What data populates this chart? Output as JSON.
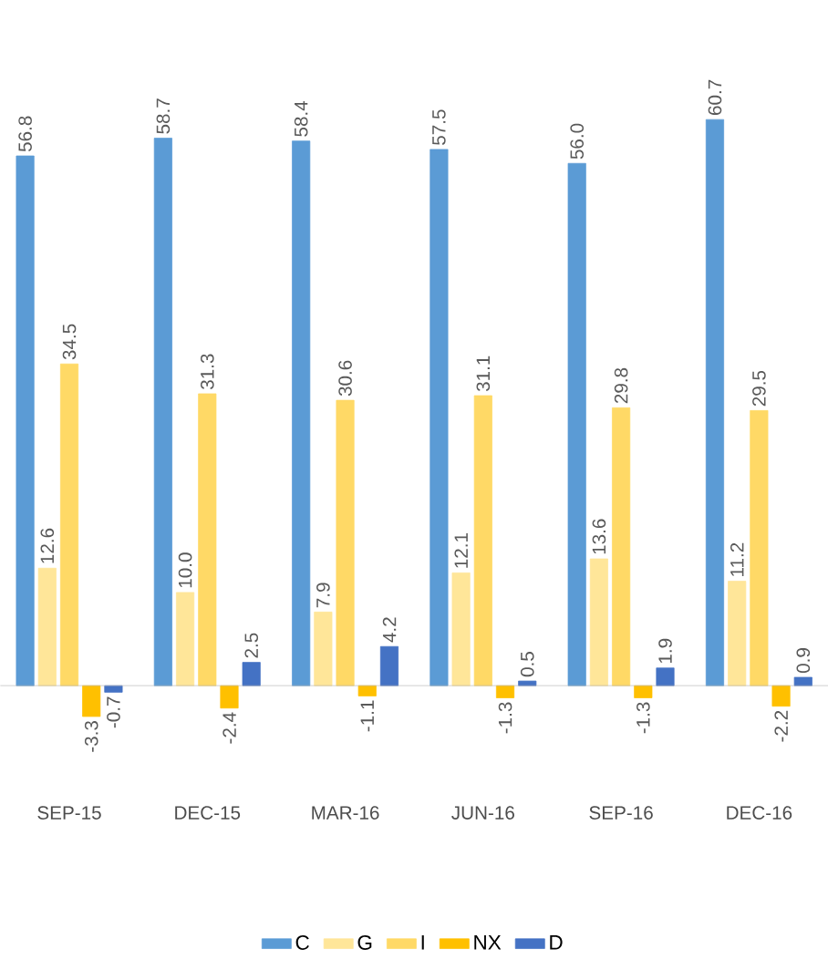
{
  "chart_data": {
    "type": "bar",
    "categories": [
      "SEP-15",
      "DEC-15",
      "MAR-16",
      "JUN-16",
      "SEP-16",
      "DEC-16"
    ],
    "series": [
      {
        "name": "C",
        "color": "#5b9bd5",
        "values": [
          56.8,
          58.7,
          58.4,
          57.5,
          56.0,
          60.7
        ],
        "value_labels": [
          "56.8",
          "58.7",
          "58.4",
          "57.5",
          "56.0",
          "60.7"
        ]
      },
      {
        "name": "G",
        "color": "#ffe699",
        "values": [
          12.6,
          10.0,
          7.9,
          12.1,
          13.6,
          11.2
        ],
        "value_labels": [
          "12.6",
          "10.0",
          "7.9",
          "12.1",
          "13.6",
          "11.2"
        ]
      },
      {
        "name": "I",
        "color": "#ffd966",
        "values": [
          34.5,
          31.3,
          30.6,
          31.1,
          29.8,
          29.5
        ],
        "value_labels": [
          "34.5",
          "31.3",
          "30.6",
          "31.1",
          "29.8",
          "29.5"
        ]
      },
      {
        "name": "NX",
        "color": "#ffc000",
        "values": [
          -3.3,
          -2.4,
          -1.1,
          -1.3,
          -1.3,
          -2.2
        ],
        "value_labels": [
          "-3.3",
          "-2.4",
          "-1.1",
          "-1.3",
          "-1.3",
          "-2.2"
        ]
      },
      {
        "name": "D",
        "color": "#4472c4",
        "values": [
          -0.7,
          2.5,
          4.2,
          0.5,
          1.9,
          0.9
        ],
        "value_labels": [
          "-0.7",
          "2.5",
          "4.2",
          "0.5",
          "1.9",
          "0.9"
        ]
      }
    ],
    "legend": "bottom"
  }
}
